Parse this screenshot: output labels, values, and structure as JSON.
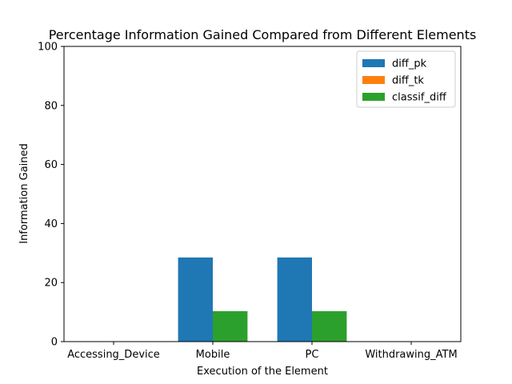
{
  "chart_data": {
    "type": "bar",
    "title": "Percentage Information Gained Compared from Different Elements",
    "xlabel": "Execution of the Element",
    "ylabel": "Information Gained",
    "categories": [
      "Accessing_Device",
      "Mobile",
      "PC",
      "Withdrawing_ATM"
    ],
    "series": [
      {
        "name": "diff_pk",
        "values": [
          0,
          28.5,
          28.5,
          0
        ],
        "color": "#1f77b4"
      },
      {
        "name": "diff_tk",
        "values": [
          0,
          0,
          0,
          0
        ],
        "color": "#ff7f0e"
      },
      {
        "name": "classif_diff",
        "values": [
          0,
          10.3,
          10.3,
          0
        ],
        "color": "#2ca02c"
      }
    ],
    "ylim": [
      0,
      100
    ],
    "yticks": [
      "0",
      "20",
      "40",
      "60",
      "80",
      "100"
    ],
    "grid": false,
    "legend_position": "top-right"
  }
}
